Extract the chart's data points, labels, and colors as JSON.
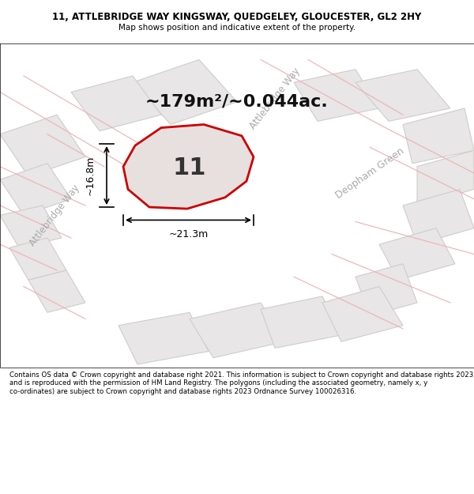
{
  "title_line1": "11, ATTLEBRIDGE WAY KINGSWAY, QUEDGELEY, GLOUCESTER, GL2 2HY",
  "title_line2": "Map shows position and indicative extent of the property.",
  "area_text": "~179m²/~0.044ac.",
  "number_label": "11",
  "width_label": "~21.3m",
  "height_label": "~16.8m",
  "road_label_1": "Attlebridge Way",
  "road_label_2": "Attlebridge Way",
  "road_label_3": "Deopham Green",
  "footer_text": "Contains OS data © Crown copyright and database right 2021. This information is subject to Crown copyright and database rights 2023 and is reproduced with the permission of HM Land Registry. The polygons (including the associated geometry, namely x, y co-ordinates) are subject to Crown copyright and database rights 2023 Ordnance Survey 100026316.",
  "bg_color": "#f5f5f5",
  "map_bg": "#f0eeee",
  "block_color": "#e8e6e6",
  "block_edge_color": "#d0cccc",
  "road_color": "#ffffff",
  "highlight_color": "#e8e0de",
  "plot_outline_color": "#cc0000",
  "plot_fill_color": "#e8e0de",
  "footer_bg": "#ffffff",
  "title_bg": "#ffffff"
}
